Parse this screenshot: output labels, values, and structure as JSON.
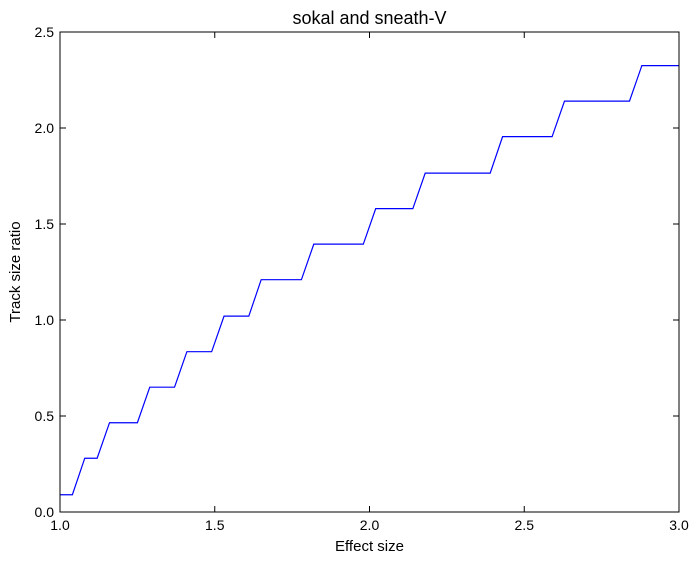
{
  "chart_data": {
    "type": "line",
    "title": "sokal and sneath-V",
    "xlabel": "Effect size",
    "ylabel": "Track size ratio",
    "xlim": [
      1.0,
      3.0
    ],
    "ylim": [
      0.0,
      2.5
    ],
    "xticks": [
      "1.0",
      "1.5",
      "2.0",
      "2.5",
      "3.0"
    ],
    "yticks": [
      "0.0",
      "0.5",
      "1.0",
      "1.5",
      "2.0",
      "2.5"
    ],
    "grid": false,
    "line_color": "#0000ff",
    "series": [
      {
        "x": [
          1.0,
          1.04,
          1.08,
          1.12,
          1.16,
          1.25,
          1.29,
          1.37,
          1.41,
          1.49,
          1.53,
          1.61,
          1.65,
          1.78,
          1.82,
          1.98,
          2.02,
          2.14,
          2.18,
          2.39,
          2.43,
          2.59,
          2.63,
          2.84,
          2.88,
          3.0
        ],
        "y": [
          0.09,
          0.09,
          0.28,
          0.28,
          0.465,
          0.465,
          0.65,
          0.65,
          0.835,
          0.835,
          1.02,
          1.02,
          1.21,
          1.21,
          1.395,
          1.395,
          1.58,
          1.58,
          1.765,
          1.765,
          1.955,
          1.955,
          2.14,
          2.14,
          2.325,
          2.325
        ]
      }
    ]
  }
}
